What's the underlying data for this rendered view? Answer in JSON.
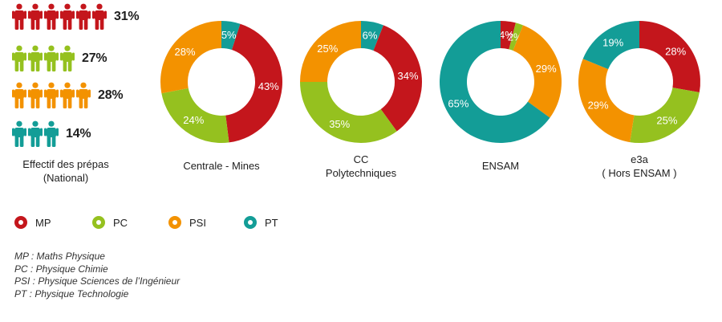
{
  "colors": {
    "MP": "#c4161c",
    "PC": "#95c11f",
    "PSI": "#f39200",
    "PT": "#139d97"
  },
  "national": {
    "caption_line1": "Effectif des prépas",
    "caption_line2": "(National)",
    "rows": [
      {
        "filiere": "MP",
        "percent_label": "31%",
        "value": 31,
        "icons": 6
      },
      {
        "filiere": "PC",
        "percent_label": "27%",
        "value": 27,
        "icons": 4
      },
      {
        "filiere": "PSI",
        "percent_label": "28%",
        "value": 28,
        "icons": 5
      },
      {
        "filiere": "PT",
        "percent_label": "14%",
        "value": 14,
        "icons": 3
      }
    ]
  },
  "legend": [
    {
      "key": "MP",
      "label": "MP",
      "icon": "ring-icon"
    },
    {
      "key": "PC",
      "label": "PC",
      "icon": "ring-icon"
    },
    {
      "key": "PSI",
      "label": "PSI",
      "icon": "ring-icon"
    },
    {
      "key": "PT",
      "label": "PT",
      "icon": "ring-icon"
    }
  ],
  "notes": [
    "MP : Maths Physique",
    "PC : Physique Chimie",
    "PSI : Physique Sciences de l’Ingénieur",
    "PT : Physique Technologie"
  ],
  "chart_data": [
    {
      "type": "pie",
      "title": "Centrale - Mines",
      "title_lines": [
        "Centrale - Mines"
      ],
      "series": [
        {
          "name": "PT",
          "value": 5,
          "label": "5%"
        },
        {
          "name": "MP",
          "value": 43,
          "label": "43%"
        },
        {
          "name": "PC",
          "value": 24,
          "label": "24%"
        },
        {
          "name": "PSI",
          "value": 28,
          "label": "28%"
        }
      ]
    },
    {
      "type": "pie",
      "title": "CC Polytechniques",
      "title_lines": [
        "CC",
        "Polytechniques"
      ],
      "series": [
        {
          "name": "PT",
          "value": 6,
          "label": "6%"
        },
        {
          "name": "MP",
          "value": 34,
          "label": "34%"
        },
        {
          "name": "PC",
          "value": 35,
          "label": "35%"
        },
        {
          "name": "PSI",
          "value": 25,
          "label": "25%"
        }
      ]
    },
    {
      "type": "pie",
      "title": "ENSAM",
      "title_lines": [
        "ENSAM"
      ],
      "series": [
        {
          "name": "MP",
          "value": 4,
          "label": "4%"
        },
        {
          "name": "PC",
          "value": 2,
          "label": "2%"
        },
        {
          "name": "PSI",
          "value": 29,
          "label": "29%"
        },
        {
          "name": "PT",
          "value": 65,
          "label": "65%"
        }
      ]
    },
    {
      "type": "pie",
      "title": "e3a ( Hors ENSAM )",
      "title_lines": [
        "e3a",
        "( Hors ENSAM )"
      ],
      "series": [
        {
          "name": "MP",
          "value": 28,
          "label": "28%"
        },
        {
          "name": "PC",
          "value": 25,
          "label": "25%"
        },
        {
          "name": "PSI",
          "value": 29,
          "label": "29%"
        },
        {
          "name": "PT",
          "value": 19,
          "label": "19%"
        }
      ]
    }
  ]
}
